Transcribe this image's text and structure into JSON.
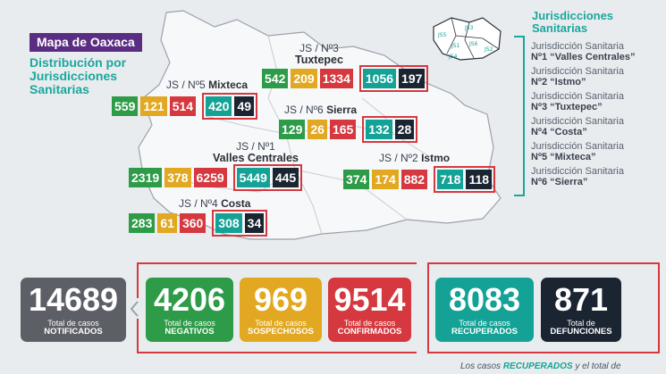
{
  "header": {
    "title": "Mapa de Oaxaca",
    "subtitle": "Distribución por Jurisdicciones Sanitarias"
  },
  "jurisdictions": [
    {
      "line1": "JS / Nº3",
      "line2": "Tuxtepec",
      "values": [
        "542",
        "209",
        "1334",
        "1056",
        "197"
      ]
    },
    {
      "line1": "JS / Nº5",
      "line2": "Mixteca",
      "values": [
        "559",
        "121",
        "514",
        "420",
        "49"
      ]
    },
    {
      "line1": "JS / Nº6",
      "line2": "Sierra",
      "values": [
        "129",
        "26",
        "165",
        "132",
        "28"
      ]
    },
    {
      "line1": "JS / Nº1",
      "line2": "Valles Centrales",
      "values": [
        "2319",
        "378",
        "6259",
        "5449",
        "445"
      ]
    },
    {
      "line1": "JS / Nº2",
      "line2": "Istmo",
      "values": [
        "374",
        "174",
        "882",
        "718",
        "118"
      ]
    },
    {
      "line1": "JS / Nº4",
      "line2": "Costa",
      "values": [
        "283",
        "61",
        "360",
        "308",
        "34"
      ]
    }
  ],
  "legend": {
    "title": "Jurisdicciones Sanitarias",
    "items": [
      {
        "prefix": "Jurisdicción Sanitaria",
        "name": "Nº1 “Valles Centrales”"
      },
      {
        "prefix": "Jurisdicción Sanitaria",
        "name": "Nº2 “Istmo”"
      },
      {
        "prefix": "Jurisdicción Sanitaria",
        "name": "Nº3 “Tuxtepec”"
      },
      {
        "prefix": "Jurisdicción Sanitaria",
        "name": "Nº4 “Costa”"
      },
      {
        "prefix": "Jurisdicción Sanitaria",
        "name": "Nº5 “Mixteca”"
      },
      {
        "prefix": "Jurisdicción Sanitaria",
        "name": "Nº6 “Sierra”"
      }
    ]
  },
  "minimap_labels": [
    "JS5",
    "JS3",
    "JS6",
    "JS1",
    "JS2",
    "JS4"
  ],
  "totals": [
    {
      "value": "14689",
      "label": "Total de casos",
      "sub": "NOTIFICADOS",
      "color": "#5d5f66"
    },
    {
      "value": "4206",
      "label": "Total de casos",
      "sub": "NEGATIVOS",
      "color": "#2e9b48"
    },
    {
      "value": "969",
      "label": "Total de casos",
      "sub": "SOSPECHOSOS",
      "color": "#e2a821"
    },
    {
      "value": "9514",
      "label": "Total de casos",
      "sub": "CONFIRMADOS",
      "color": "#d5383e"
    },
    {
      "value": "8083",
      "label": "Total de casos",
      "sub": "RECUPERADOS",
      "color": "#14a296"
    },
    {
      "value": "871",
      "label": "Total de",
      "sub": "DEFUNCIONES",
      "color": "#1b2532"
    }
  ],
  "footer": {
    "prefix": "Los casos ",
    "highlight": "RECUPERADOS",
    "suffix": " y el total de"
  }
}
